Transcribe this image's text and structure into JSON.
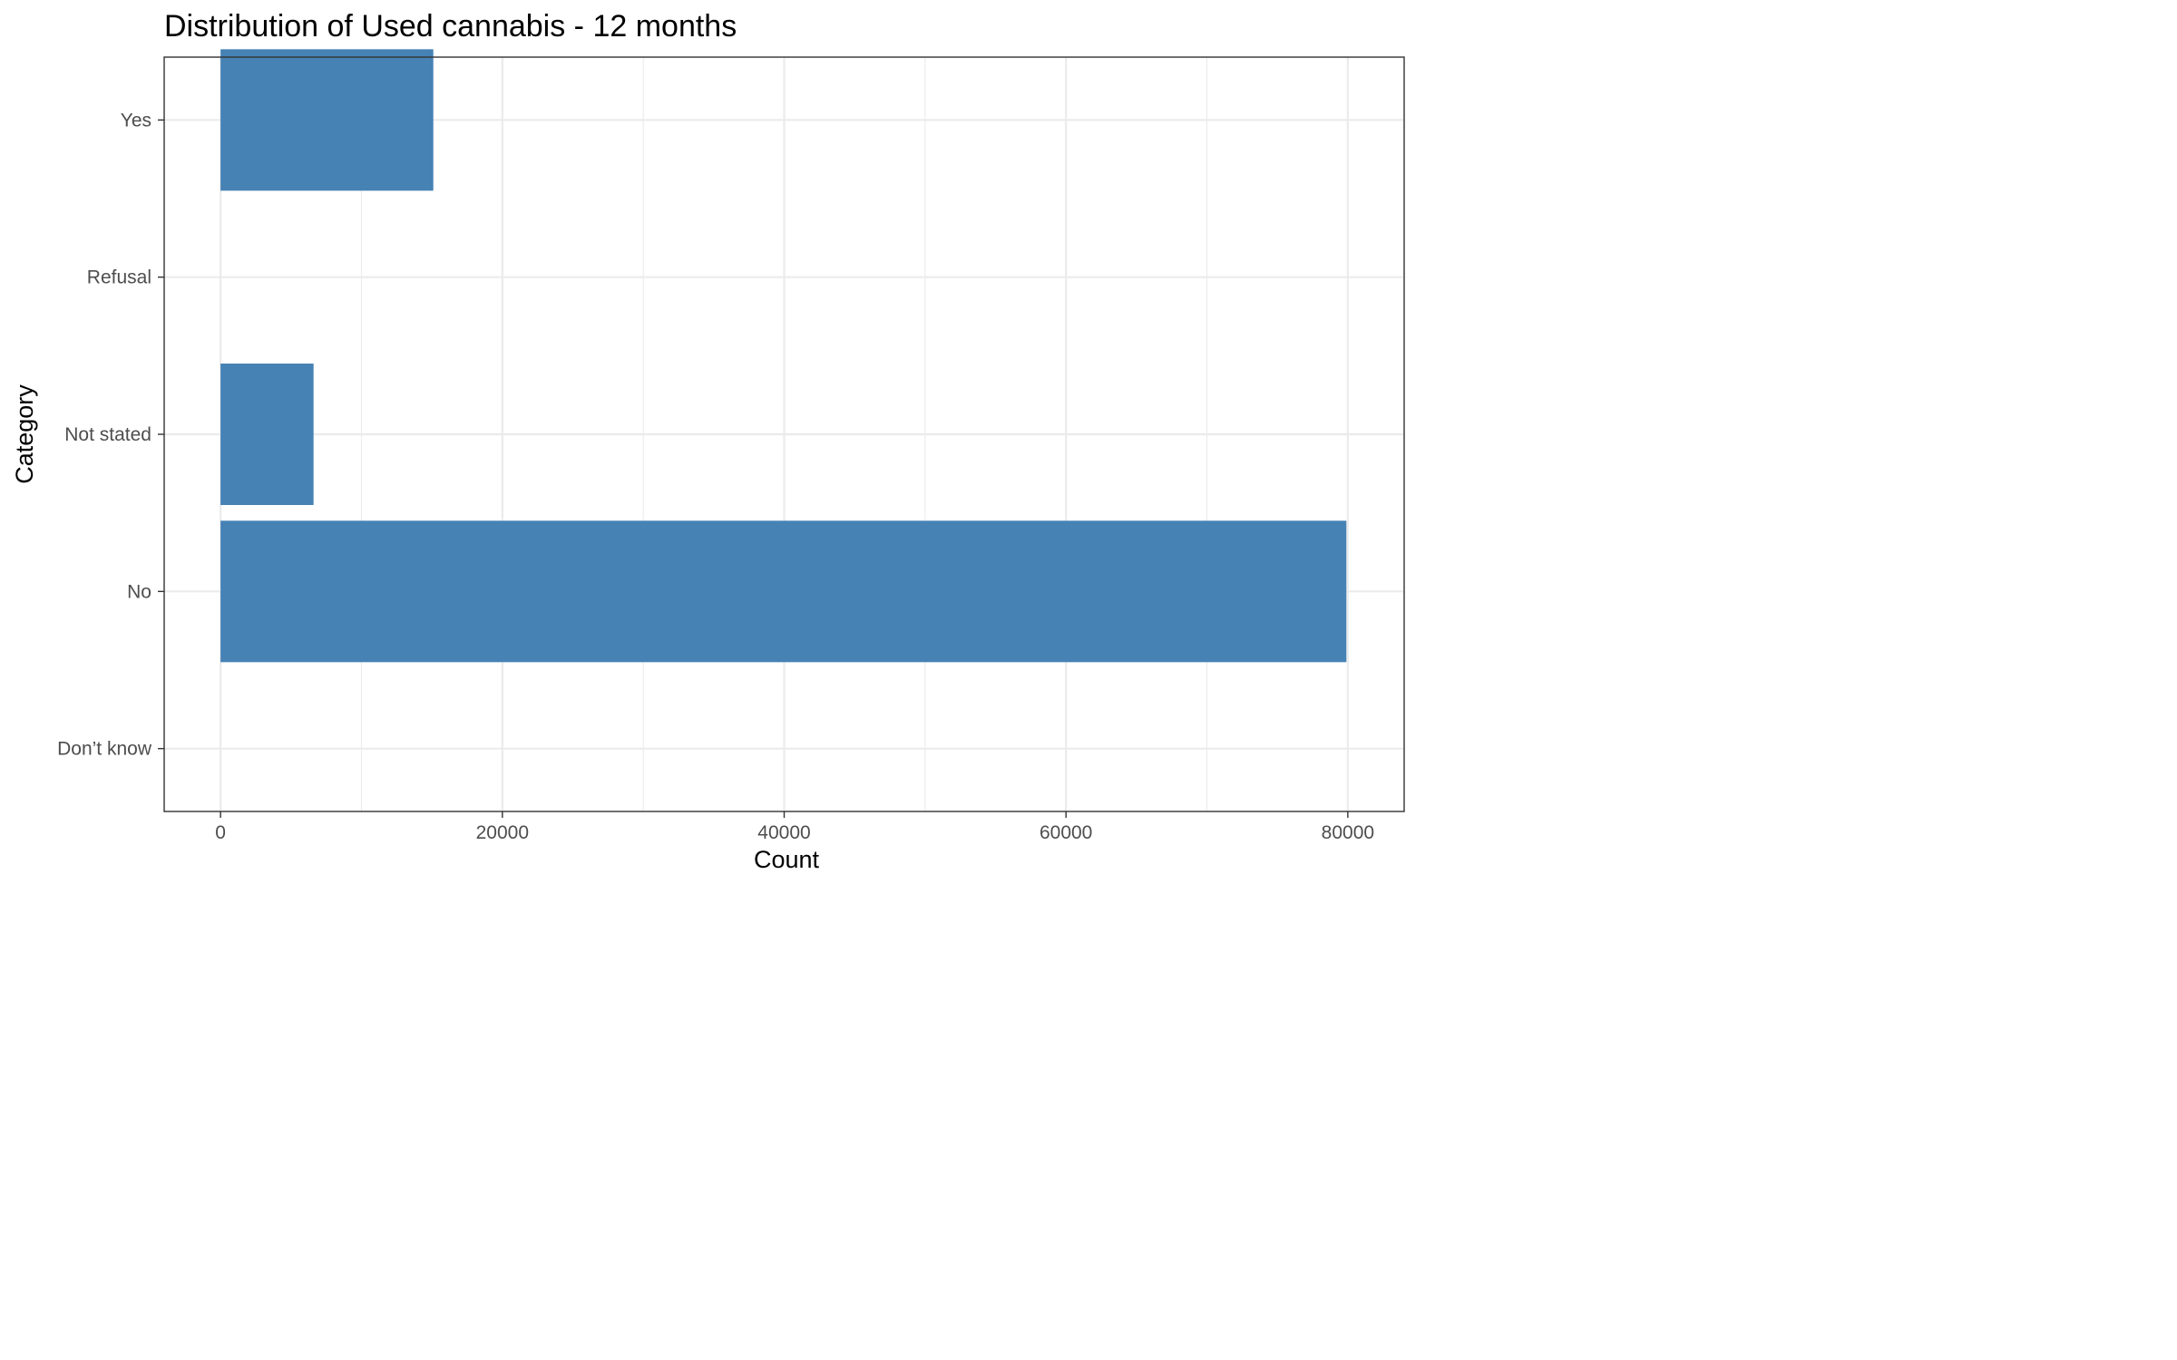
{
  "chart_data": {
    "type": "bar",
    "orientation": "horizontal",
    "title": "Distribution of Used cannabis - 12 months",
    "xlabel": "Count",
    "ylabel": "Category",
    "categories": [
      "Don’t know",
      "No",
      "Not stated",
      "Refusal",
      "Yes"
    ],
    "values": [
      0,
      79900,
      6600,
      0,
      15100
    ],
    "xlim": [
      -4000,
      84000
    ],
    "xticks": [
      0,
      20000,
      40000,
      60000,
      80000
    ],
    "grid": true,
    "colors": {
      "bar": "#4682b4",
      "grid": "#ebebeb",
      "panel_border": "#333333",
      "tick_text": "#4d4d4d"
    }
  }
}
